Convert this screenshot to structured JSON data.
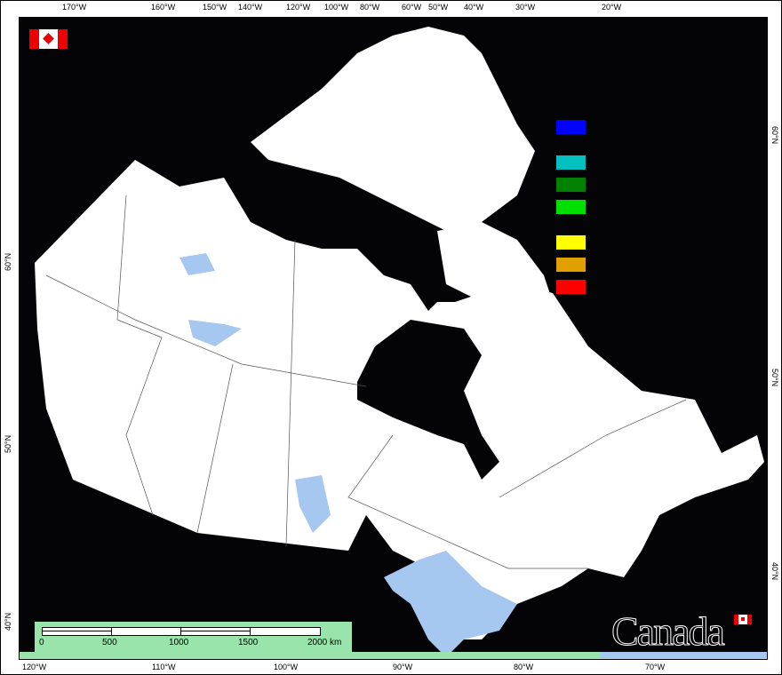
{
  "top_axis": [
    "170°W",
    "160°W",
    "150°W",
    "140°W",
    "120°W",
    "100°W",
    "80°W",
    "60°W",
    "50°W",
    "40°W",
    "30°W",
    "20°W"
  ],
  "bottom_axis": [
    "120°W",
    "110°W",
    "100°W",
    "90°W",
    "80°W",
    "70°W"
  ],
  "left_axis": [
    "60°N",
    "50°N",
    "40°N"
  ],
  "right_axis": [
    "60°N",
    "50°N",
    "40°N"
  ],
  "legend_colors": [
    "#0000ff",
    "#00c0c0",
    "#008000",
    "#00e000",
    "#ffff00",
    "#e0a000",
    "#ff0000"
  ],
  "scale_bar": {
    "labels": [
      "0",
      "500",
      "1000",
      "1500",
      "2000 km"
    ]
  },
  "wordmark": "Canada",
  "colors": {
    "land": "#ffffff",
    "water": "#040306",
    "lakes": "#a6c8f0",
    "strip": "#98e4ab"
  }
}
